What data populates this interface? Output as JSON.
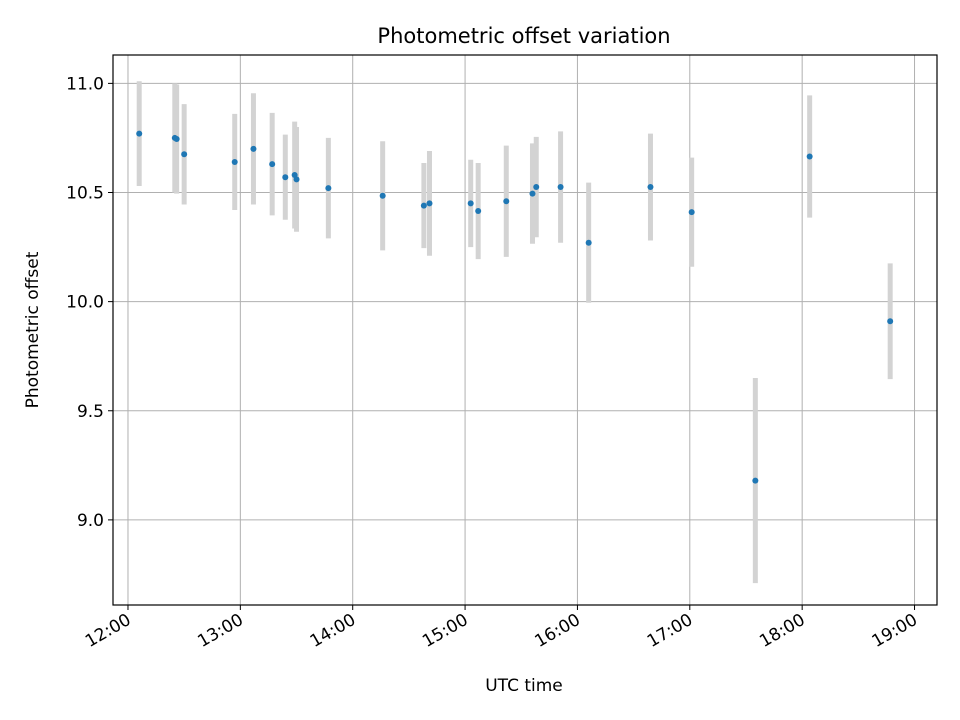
{
  "chart_data": {
    "type": "scatter",
    "title": "Photometric offset variation",
    "xlabel": "UTC time",
    "ylabel": "Photometric offset",
    "x_ticks": [
      "12:00",
      "13:00",
      "14:00",
      "15:00",
      "16:00",
      "17:00",
      "18:00",
      "19:00"
    ],
    "y_ticks": [
      "9.0",
      "9.5",
      "10.0",
      "10.5",
      "11.0"
    ],
    "xlim": [
      "11:52",
      "19:12"
    ],
    "ylim": [
      8.61,
      11.13
    ],
    "grid": true,
    "marker_color": "#1f77b4",
    "errorbar_color": "#d3d3d3",
    "points": [
      {
        "x": "12:06",
        "y": 10.77,
        "err": 0.24
      },
      {
        "x": "12:25",
        "y": 10.75,
        "err": 0.25
      },
      {
        "x": "12:26",
        "y": 10.745,
        "err": 0.25
      },
      {
        "x": "12:30",
        "y": 10.675,
        "err": 0.23
      },
      {
        "x": "12:57",
        "y": 10.64,
        "err": 0.22
      },
      {
        "x": "13:07",
        "y": 10.7,
        "err": 0.255
      },
      {
        "x": "13:17",
        "y": 10.63,
        "err": 0.235
      },
      {
        "x": "13:24",
        "y": 10.57,
        "err": 0.195
      },
      {
        "x": "13:29",
        "y": 10.58,
        "err": 0.245
      },
      {
        "x": "13:30",
        "y": 10.56,
        "err": 0.24
      },
      {
        "x": "13:47",
        "y": 10.52,
        "err": 0.23
      },
      {
        "x": "14:16",
        "y": 10.485,
        "err": 0.25
      },
      {
        "x": "14:38",
        "y": 10.44,
        "err": 0.195
      },
      {
        "x": "14:41",
        "y": 10.45,
        "err": 0.24
      },
      {
        "x": "15:03",
        "y": 10.45,
        "err": 0.2
      },
      {
        "x": "15:07",
        "y": 10.415,
        "err": 0.22
      },
      {
        "x": "15:22",
        "y": 10.46,
        "err": 0.255
      },
      {
        "x": "15:36",
        "y": 10.495,
        "err": 0.23
      },
      {
        "x": "15:38",
        "y": 10.525,
        "err": 0.23
      },
      {
        "x": "15:51",
        "y": 10.525,
        "err": 0.255
      },
      {
        "x": "16:06",
        "y": 10.27,
        "err": 0.275
      },
      {
        "x": "16:39",
        "y": 10.525,
        "err": 0.245
      },
      {
        "x": "17:01",
        "y": 10.41,
        "err": 0.25
      },
      {
        "x": "17:35",
        "y": 9.18,
        "err": 0.47
      },
      {
        "x": "18:04",
        "y": 10.665,
        "err": 0.28
      },
      {
        "x": "18:47",
        "y": 9.91,
        "err": 0.265
      }
    ]
  }
}
